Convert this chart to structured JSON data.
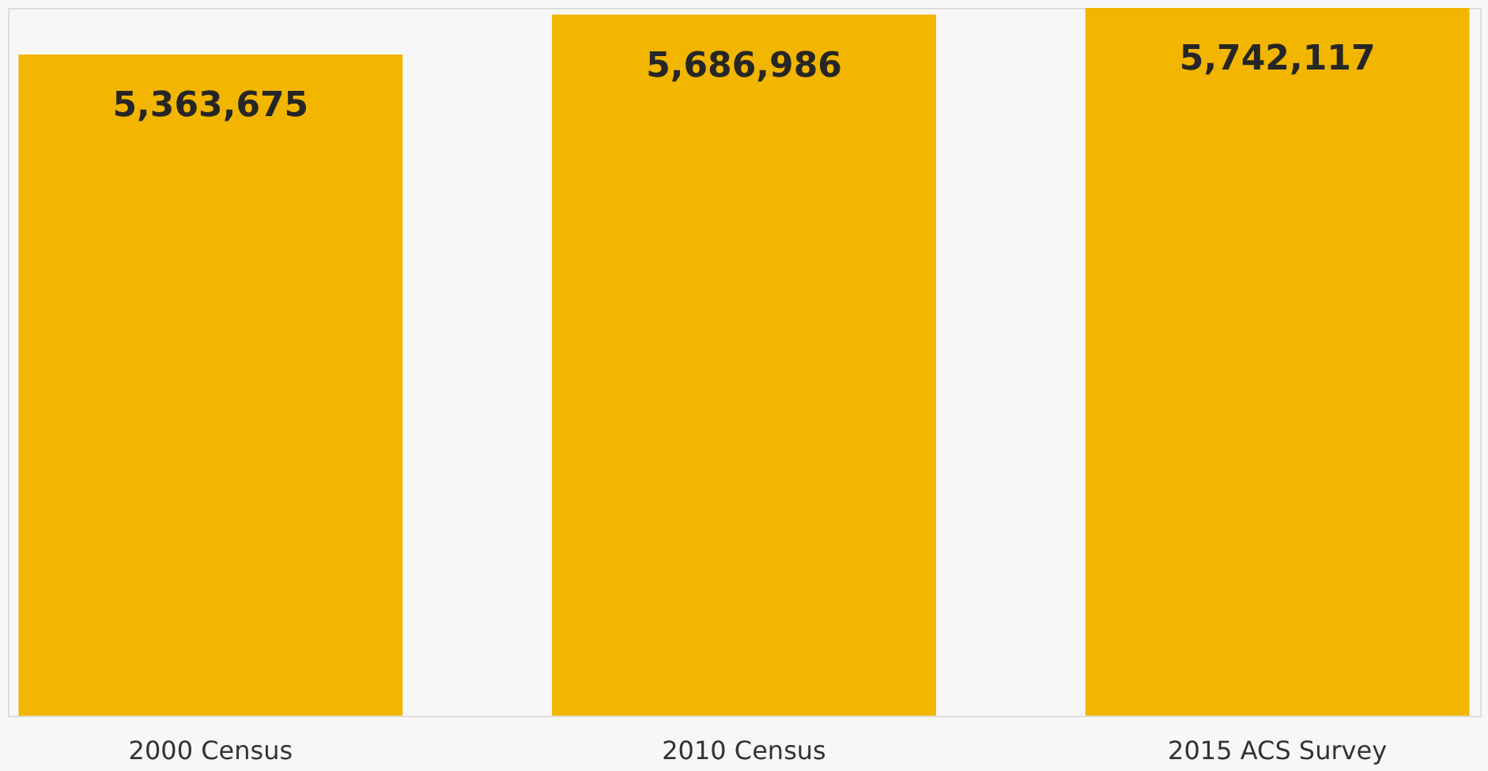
{
  "chart_data": {
    "type": "bar",
    "categories": [
      "2000 Census",
      "2010 Census",
      "2015 ACS Survey"
    ],
    "values": [
      5363675,
      5686986,
      5742117
    ],
    "color": "#f2b500",
    "value_labels": [
      "5,363,675",
      "5,686,986",
      "5,742,117"
    ],
    "grid": false,
    "tick_labels": "x"
  }
}
